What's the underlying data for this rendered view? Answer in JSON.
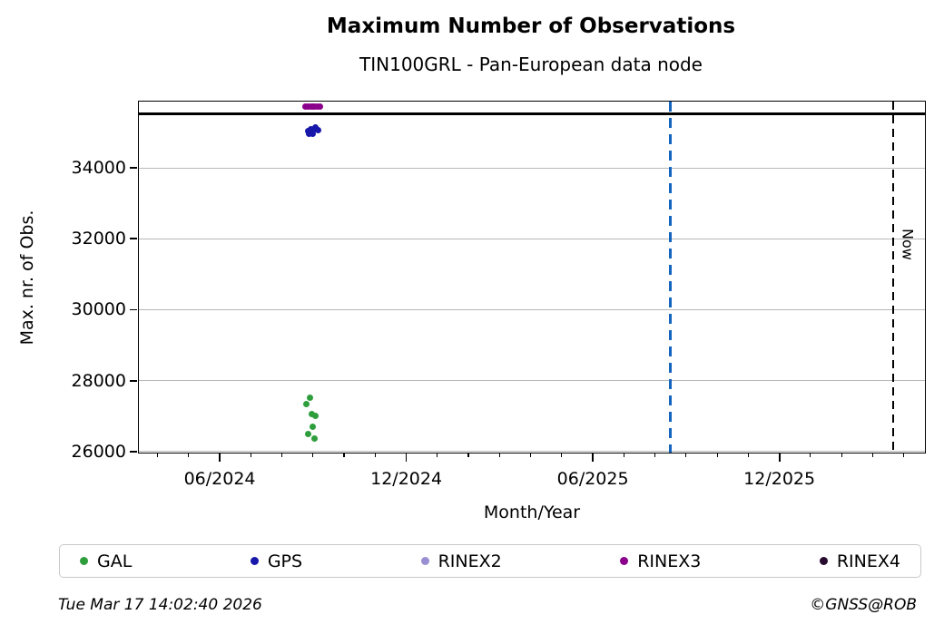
{
  "header": {
    "title": "Maximum Number of Observations",
    "subtitle": "TIN100GRL - Pan-European data node"
  },
  "footer": {
    "timestamp": "Tue Mar 17 14:02:40 2026",
    "credit": "©GNSS@ROB"
  },
  "annotations": {
    "now_label": "Now"
  },
  "legend": {
    "items": [
      {
        "label": "GAL",
        "color": "#2e9e3c"
      },
      {
        "label": "GPS",
        "color": "#1717aa"
      },
      {
        "label": "RINEX2",
        "color": "#988fd2"
      },
      {
        "label": "RINEX3",
        "color": "#8b008b"
      },
      {
        "label": "RINEX4",
        "color": "#260b2e"
      }
    ]
  },
  "chart_data": {
    "type": "scatter",
    "title": "Maximum Number of Observations",
    "subtitle": "TIN100GRL - Pan-European data node",
    "xlabel": "Month/Year",
    "ylabel": "Max. nr. of Obs.",
    "x_axis": {
      "unit": "months_since_2024-01-01",
      "range": [
        2.4,
        27.74
      ],
      "major_ticks": [
        {
          "m": 5,
          "label": "06/2024"
        },
        {
          "m": 11,
          "label": "12/2024"
        },
        {
          "m": 17,
          "label": "06/2025"
        },
        {
          "m": 23,
          "label": "12/2025"
        }
      ],
      "minor_ticks": [
        3,
        4,
        6,
        7,
        8,
        9,
        10,
        12,
        13,
        14,
        15,
        16,
        18,
        19,
        20,
        21,
        22,
        24,
        25,
        26,
        27
      ]
    },
    "y_axis": {
      "range": [
        25920,
        35870
      ],
      "ticks": [
        {
          "v": 26000,
          "label": "26000"
        },
        {
          "v": 28000,
          "label": "28000"
        },
        {
          "v": 30000,
          "label": "30000"
        },
        {
          "v": 32000,
          "label": "32000"
        },
        {
          "v": 34000,
          "label": "34000"
        }
      ],
      "grid": true
    },
    "series": [
      {
        "name": "GAL",
        "color": "#2e9e3c",
        "points": [
          [
            7.8,
            27350
          ],
          [
            7.89,
            27510
          ],
          [
            7.95,
            27070
          ],
          [
            8.07,
            27000
          ],
          [
            7.98,
            26690
          ],
          [
            7.83,
            26490
          ],
          [
            8.04,
            26360
          ]
        ]
      },
      {
        "name": "GPS",
        "color": "#1717aa",
        "points": [
          [
            7.83,
            35050
          ],
          [
            7.86,
            34970
          ],
          [
            7.92,
            35100
          ],
          [
            7.98,
            34950
          ],
          [
            8.07,
            35150
          ],
          [
            8.12,
            35100
          ],
          [
            8.18,
            35070
          ]
        ]
      },
      {
        "name": "RINEX2",
        "color": "#988fd2",
        "points": []
      },
      {
        "name": "RINEX3",
        "color": "#8b008b",
        "points": [
          [
            7.77,
            35725
          ],
          [
            7.85,
            35730
          ],
          [
            7.92,
            35720
          ],
          [
            7.99,
            35730
          ],
          [
            8.06,
            35725
          ],
          [
            8.13,
            35730
          ],
          [
            8.21,
            35725
          ]
        ]
      },
      {
        "name": "RINEX4",
        "color": "#260b2e",
        "points": []
      }
    ],
    "reference_lines": {
      "ceiling": {
        "value": 35520,
        "color": "#000000",
        "style": "solid"
      },
      "blue_vline": {
        "m": 19.5,
        "approx_date": "2025-08",
        "color": "#1565bf",
        "style": "dashed"
      },
      "now_vline": {
        "m": 26.67,
        "label": "Now",
        "color": "#000000",
        "style": "dashed"
      }
    },
    "legend_position": "bottom"
  }
}
